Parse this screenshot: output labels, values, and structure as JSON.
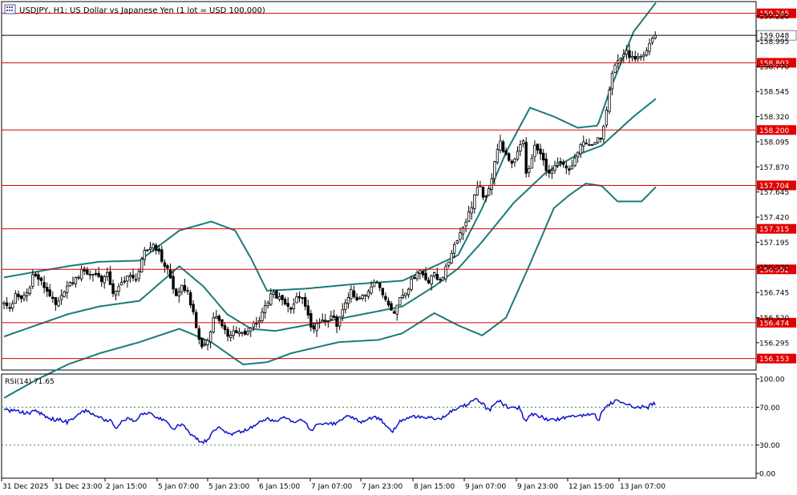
{
  "header": {
    "title": "USDJPY, H1:  US Dollar vs Japanese Yen (1 lot = USD 100,000)"
  },
  "colors": {
    "candle": "#000000",
    "bands": "#1a7a7a",
    "levels": "#e00000",
    "level_label_bg": "#e00000",
    "current_price_line": "#000000",
    "rsi": "#1010cc",
    "rsi_guides": "#2e8b57",
    "grid": "#000000"
  },
  "chart_data": [
    {
      "type": "candlestick",
      "symbol": "USDJPY",
      "timeframe": "H1",
      "ylim": [
        156.05,
        159.35
      ],
      "x_tick_labels": [
        "31 Dec 2025",
        "31 Dec 23:00",
        "2 Jan 15:00",
        "5 Jan 07:00",
        "5 Jan 23:00",
        "6 Jan 15:00",
        "7 Jan 07:00",
        "7 Jan 23:00",
        "8 Jan 15:00",
        "9 Jan 07:00",
        "9 Jan 23:00",
        "12 Jan 15:00",
        "13 Jan 07:00"
      ],
      "y_tick_labels": [
        "159.220",
        "158.995",
        "158.770",
        "158.545",
        "158.320",
        "158.095",
        "157.870",
        "157.645",
        "157.420",
        "157.195",
        "156.970",
        "156.745",
        "156.520",
        "156.295"
      ],
      "current_price": "159.048",
      "levels": [
        "159.245",
        "158.802",
        "158.200",
        "157.704",
        "157.315",
        "156.952",
        "156.474",
        "156.153"
      ],
      "close_path": [
        [
          0,
          156.64
        ],
        [
          8,
          156.6
        ],
        [
          14,
          156.72
        ],
        [
          20,
          156.68
        ],
        [
          30,
          156.75
        ],
        [
          36,
          156.9
        ],
        [
          42,
          156.88
        ],
        [
          50,
          156.8
        ],
        [
          58,
          156.72
        ],
        [
          64,
          156.62
        ],
        [
          70,
          156.66
        ],
        [
          76,
          156.78
        ],
        [
          84,
          156.82
        ],
        [
          92,
          156.88
        ],
        [
          100,
          156.96
        ],
        [
          106,
          156.9
        ],
        [
          114,
          156.92
        ],
        [
          122,
          156.86
        ],
        [
          130,
          156.9
        ],
        [
          138,
          156.72
        ],
        [
          144,
          156.78
        ],
        [
          150,
          156.86
        ],
        [
          156,
          156.9
        ],
        [
          164,
          156.85
        ],
        [
          170,
          156.95
        ],
        [
          176,
          157.1
        ],
        [
          182,
          157.14
        ],
        [
          188,
          157.18
        ],
        [
          194,
          157.1
        ],
        [
          200,
          157.0
        ],
        [
          206,
          156.95
        ],
        [
          212,
          156.78
        ],
        [
          218,
          156.7
        ],
        [
          224,
          156.8
        ],
        [
          230,
          156.76
        ],
        [
          236,
          156.6
        ],
        [
          242,
          156.4
        ],
        [
          248,
          156.25
        ],
        [
          256,
          156.32
        ],
        [
          262,
          156.5
        ],
        [
          268,
          156.55
        ],
        [
          274,
          156.42
        ],
        [
          280,
          156.36
        ],
        [
          288,
          156.4
        ],
        [
          296,
          156.38
        ],
        [
          304,
          156.36
        ],
        [
          312,
          156.48
        ],
        [
          318,
          156.46
        ],
        [
          324,
          156.58
        ],
        [
          330,
          156.62
        ],
        [
          336,
          156.75
        ],
        [
          342,
          156.7
        ],
        [
          350,
          156.68
        ],
        [
          358,
          156.6
        ],
        [
          364,
          156.65
        ],
        [
          370,
          156.72
        ],
        [
          376,
          156.66
        ],
        [
          382,
          156.52
        ],
        [
          388,
          156.4
        ],
        [
          394,
          156.46
        ],
        [
          400,
          156.5
        ],
        [
          406,
          156.48
        ],
        [
          412,
          156.52
        ],
        [
          418,
          156.46
        ],
        [
          424,
          156.55
        ],
        [
          430,
          156.7
        ],
        [
          436,
          156.75
        ],
        [
          442,
          156.66
        ],
        [
          448,
          156.7
        ],
        [
          454,
          156.72
        ],
        [
          460,
          156.8
        ],
        [
          466,
          156.88
        ],
        [
          472,
          156.76
        ],
        [
          478,
          156.7
        ],
        [
          484,
          156.64
        ],
        [
          490,
          156.55
        ],
        [
          496,
          156.7
        ],
        [
          502,
          156.74
        ],
        [
          508,
          156.8
        ],
        [
          514,
          156.88
        ],
        [
          520,
          156.96
        ],
        [
          526,
          156.9
        ],
        [
          532,
          156.84
        ],
        [
          538,
          156.92
        ],
        [
          544,
          156.86
        ],
        [
          550,
          156.88
        ],
        [
          556,
          156.98
        ],
        [
          562,
          157.12
        ],
        [
          568,
          157.22
        ],
        [
          574,
          157.3
        ],
        [
          580,
          157.4
        ],
        [
          586,
          157.5
        ],
        [
          592,
          157.66
        ],
        [
          598,
          157.68
        ],
        [
          604,
          157.56
        ],
        [
          610,
          157.7
        ],
        [
          616,
          157.95
        ],
        [
          622,
          158.1
        ],
        [
          628,
          158.0
        ],
        [
          634,
          157.9
        ],
        [
          640,
          157.92
        ],
        [
          646,
          158.06
        ],
        [
          652,
          158.12
        ],
        [
          656,
          157.72
        ],
        [
          660,
          157.9
        ],
        [
          666,
          158.05
        ],
        [
          672,
          158.0
        ],
        [
          678,
          157.9
        ],
        [
          684,
          157.8
        ],
        [
          690,
          157.85
        ],
        [
          696,
          157.9
        ],
        [
          702,
          157.88
        ],
        [
          708,
          157.82
        ],
        [
          714,
          157.9
        ],
        [
          720,
          158.0
        ],
        [
          726,
          158.08
        ],
        [
          732,
          158.1
        ],
        [
          738,
          158.05
        ],
        [
          744,
          158.1
        ],
        [
          750,
          158.15
        ],
        [
          756,
          158.4
        ],
        [
          762,
          158.7
        ],
        [
          768,
          158.8
        ],
        [
          774,
          158.85
        ],
        [
          780,
          158.9
        ],
        [
          786,
          158.86
        ],
        [
          792,
          158.82
        ],
        [
          798,
          158.84
        ],
        [
          804,
          158.86
        ],
        [
          810,
          158.98
        ],
        [
          816,
          159.05
        ],
        [
          818,
          159.048
        ]
      ],
      "bollinger_upper": [
        [
          0,
          156.88
        ],
        [
          40,
          156.93
        ],
        [
          80,
          156.98
        ],
        [
          120,
          157.02
        ],
        [
          170,
          157.03
        ],
        [
          220,
          157.3
        ],
        [
          260,
          157.38
        ],
        [
          290,
          157.3
        ],
        [
          310,
          157.05
        ],
        [
          330,
          156.76
        ],
        [
          380,
          156.78
        ],
        [
          440,
          156.82
        ],
        [
          500,
          156.85
        ],
        [
          540,
          156.98
        ],
        [
          570,
          157.08
        ],
        [
          600,
          157.5
        ],
        [
          630,
          158.0
        ],
        [
          660,
          158.4
        ],
        [
          690,
          158.32
        ],
        [
          720,
          158.22
        ],
        [
          745,
          158.24
        ],
        [
          760,
          158.55
        ],
        [
          790,
          159.08
        ],
        [
          818,
          159.34
        ]
      ],
      "bollinger_middle": [
        [
          0,
          156.35
        ],
        [
          40,
          156.45
        ],
        [
          80,
          156.55
        ],
        [
          120,
          156.62
        ],
        [
          170,
          156.67
        ],
        [
          220,
          156.98
        ],
        [
          250,
          156.8
        ],
        [
          280,
          156.55
        ],
        [
          310,
          156.42
        ],
        [
          340,
          156.4
        ],
        [
          400,
          156.48
        ],
        [
          450,
          156.55
        ],
        [
          500,
          156.62
        ],
        [
          540,
          156.8
        ],
        [
          570,
          156.96
        ],
        [
          600,
          157.2
        ],
        [
          640,
          157.55
        ],
        [
          680,
          157.82
        ],
        [
          720,
          157.98
        ],
        [
          750,
          158.06
        ],
        [
          790,
          158.32
        ],
        [
          818,
          158.48
        ]
      ],
      "bollinger_lower": [
        [
          0,
          155.8
        ],
        [
          40,
          155.96
        ],
        [
          80,
          156.1
        ],
        [
          120,
          156.2
        ],
        [
          170,
          156.3
        ],
        [
          220,
          156.42
        ],
        [
          260,
          156.3
        ],
        [
          300,
          156.1
        ],
        [
          330,
          156.12
        ],
        [
          360,
          156.2
        ],
        [
          420,
          156.3
        ],
        [
          470,
          156.32
        ],
        [
          500,
          156.38
        ],
        [
          540,
          156.56
        ],
        [
          570,
          156.45
        ],
        [
          600,
          156.36
        ],
        [
          630,
          156.52
        ],
        [
          660,
          157.0
        ],
        [
          690,
          157.5
        ],
        [
          710,
          157.62
        ],
        [
          730,
          157.72
        ],
        [
          750,
          157.7
        ],
        [
          770,
          157.56
        ],
        [
          800,
          157.56
        ],
        [
          818,
          157.69
        ]
      ]
    },
    {
      "type": "line",
      "title": "RSI(14) 71.65",
      "ylim": [
        0,
        100
      ],
      "y_tick_labels": [
        "100.00",
        "70.00",
        "30.00",
        "0.00"
      ],
      "guides": [
        70,
        30
      ],
      "values": [
        [
          0,
          67
        ],
        [
          10,
          66
        ],
        [
          20,
          65
        ],
        [
          30,
          63
        ],
        [
          40,
          68
        ],
        [
          48,
          62
        ],
        [
          56,
          58
        ],
        [
          64,
          57
        ],
        [
          72,
          56
        ],
        [
          80,
          54
        ],
        [
          88,
          60
        ],
        [
          96,
          65
        ],
        [
          104,
          66
        ],
        [
          112,
          62
        ],
        [
          120,
          60
        ],
        [
          128,
          56
        ],
        [
          134,
          55
        ],
        [
          140,
          47
        ],
        [
          148,
          55
        ],
        [
          156,
          58
        ],
        [
          164,
          56
        ],
        [
          172,
          62
        ],
        [
          180,
          64
        ],
        [
          188,
          62
        ],
        [
          196,
          58
        ],
        [
          204,
          55
        ],
        [
          212,
          47
        ],
        [
          220,
          52
        ],
        [
          226,
          50
        ],
        [
          232,
          44
        ],
        [
          240,
          37
        ],
        [
          248,
          33
        ],
        [
          256,
          36
        ],
        [
          262,
          46
        ],
        [
          270,
          50
        ],
        [
          276,
          44
        ],
        [
          284,
          40
        ],
        [
          292,
          44
        ],
        [
          300,
          44
        ],
        [
          308,
          48
        ],
        [
          316,
          50
        ],
        [
          324,
          56
        ],
        [
          332,
          58
        ],
        [
          340,
          55
        ],
        [
          348,
          59
        ],
        [
          356,
          57
        ],
        [
          364,
          55
        ],
        [
          372,
          56
        ],
        [
          380,
          52
        ],
        [
          386,
          45
        ],
        [
          392,
          52
        ],
        [
          400,
          51
        ],
        [
          408,
          52
        ],
        [
          416,
          53
        ],
        [
          424,
          58
        ],
        [
          432,
          60
        ],
        [
          440,
          58
        ],
        [
          448,
          54
        ],
        [
          456,
          58
        ],
        [
          464,
          60
        ],
        [
          472,
          57
        ],
        [
          480,
          50
        ],
        [
          488,
          44
        ],
        [
          496,
          55
        ],
        [
          504,
          57
        ],
        [
          512,
          60
        ],
        [
          520,
          60
        ],
        [
          528,
          58
        ],
        [
          536,
          60
        ],
        [
          544,
          56
        ],
        [
          552,
          60
        ],
        [
          560,
          66
        ],
        [
          568,
          68
        ],
        [
          576,
          71
        ],
        [
          584,
          74
        ],
        [
          592,
          78
        ],
        [
          600,
          75
        ],
        [
          608,
          66
        ],
        [
          614,
          72
        ],
        [
          622,
          76
        ],
        [
          630,
          71
        ],
        [
          638,
          68
        ],
        [
          646,
          70
        ],
        [
          654,
          55
        ],
        [
          660,
          63
        ],
        [
          666,
          62
        ],
        [
          674,
          60
        ],
        [
          682,
          57
        ],
        [
          690,
          56
        ],
        [
          700,
          58
        ],
        [
          710,
          59
        ],
        [
          720,
          61
        ],
        [
          732,
          63
        ],
        [
          740,
          63
        ],
        [
          746,
          56
        ],
        [
          754,
          70
        ],
        [
          762,
          75
        ],
        [
          770,
          77
        ],
        [
          780,
          75
        ],
        [
          790,
          70
        ],
        [
          800,
          70
        ],
        [
          808,
          70
        ],
        [
          814,
          74
        ],
        [
          818,
          71.65
        ]
      ]
    }
  ]
}
